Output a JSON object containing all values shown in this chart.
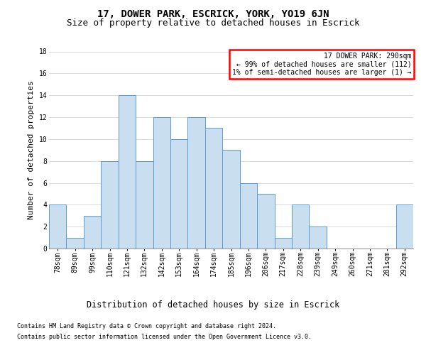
{
  "title": "17, DOWER PARK, ESCRICK, YORK, YO19 6JN",
  "subtitle": "Size of property relative to detached houses in Escrick",
  "xlabel": "Distribution of detached houses by size in Escrick",
  "ylabel": "Number of detached properties",
  "bins": [
    "78sqm",
    "89sqm",
    "99sqm",
    "110sqm",
    "121sqm",
    "132sqm",
    "142sqm",
    "153sqm",
    "164sqm",
    "174sqm",
    "185sqm",
    "196sqm",
    "206sqm",
    "217sqm",
    "228sqm",
    "239sqm",
    "249sqm",
    "260sqm",
    "271sqm",
    "281sqm",
    "292sqm"
  ],
  "bar_heights": [
    4,
    1,
    3,
    8,
    14,
    8,
    12,
    10,
    12,
    11,
    9,
    6,
    5,
    1,
    4,
    2,
    0,
    0,
    0,
    0,
    4
  ],
  "bar_color": "#c9dff0",
  "bar_edge_color": "#5b9bd5",
  "grid_color": "#cccccc",
  "background_color": "#ffffff",
  "annotation_box_text": "17 DOWER PARK: 290sqm\n← 99% of detached houses are smaller (112)\n1% of semi-detached houses are larger (1) →",
  "annotation_box_color": "#ff0000",
  "ylim": [
    0,
    18
  ],
  "yticks": [
    0,
    2,
    4,
    6,
    8,
    10,
    12,
    14,
    16,
    18
  ],
  "footer_line1": "Contains HM Land Registry data © Crown copyright and database right 2024.",
  "footer_line2": "Contains public sector information licensed under the Open Government Licence v3.0.",
  "title_fontsize": 10,
  "subtitle_fontsize": 9,
  "tick_fontsize": 7,
  "ylabel_fontsize": 8,
  "xlabel_fontsize": 8.5,
  "annotation_fontsize": 7,
  "footer_fontsize": 6
}
